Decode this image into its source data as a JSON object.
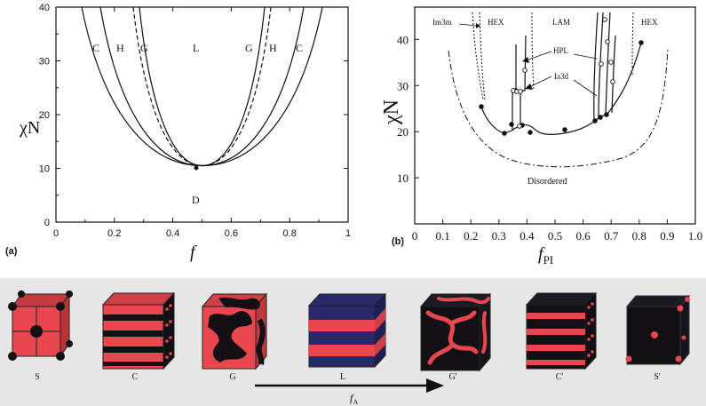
{
  "panel_a": {
    "letter": "(a)",
    "ylabel": "χN",
    "xlabel": "f",
    "xticks": [
      "0",
      "0.2",
      "0.4",
      "0.6",
      "0.8",
      "1"
    ],
    "yticks": [
      "0",
      "10",
      "20",
      "30",
      "40"
    ],
    "xlim": [
      0,
      1
    ],
    "ylim": [
      0,
      40
    ],
    "region_labels": [
      "C",
      "H",
      "G",
      "L",
      "G",
      "H",
      "C"
    ],
    "disordered_label": "D",
    "critical_point": {
      "f": 0.5,
      "chiN": 10.5
    }
  },
  "panel_b": {
    "letter": "(b)",
    "ylabel": "χN",
    "xlabel": "f",
    "xlabel_sub": "PI",
    "xticks": [
      "0",
      "0.1",
      "0.2",
      "0.3",
      "0.4",
      "0.5",
      "0.6",
      "0.7",
      "0.8",
      "0.9",
      "1.0"
    ],
    "yticks": [
      "10",
      "20",
      "30",
      "40"
    ],
    "xlim": [
      0,
      1
    ],
    "ylim": [
      0,
      47
    ],
    "phase_labels": [
      "Im3m",
      "HEX",
      "LAM",
      "HEX"
    ],
    "annotations": [
      "HPL",
      "Ia3d"
    ],
    "disordered_label": "Disordered"
  },
  "morphologies": {
    "labels": [
      "S",
      "C",
      "G",
      "L",
      "G'",
      "C'",
      "S'"
    ],
    "arrow_label": "f",
    "arrow_label_sub": "A",
    "colors": {
      "red": "#e8474f",
      "black": "#121015",
      "blue": "#2a2a6a",
      "background": "#e6e6e6"
    }
  }
}
